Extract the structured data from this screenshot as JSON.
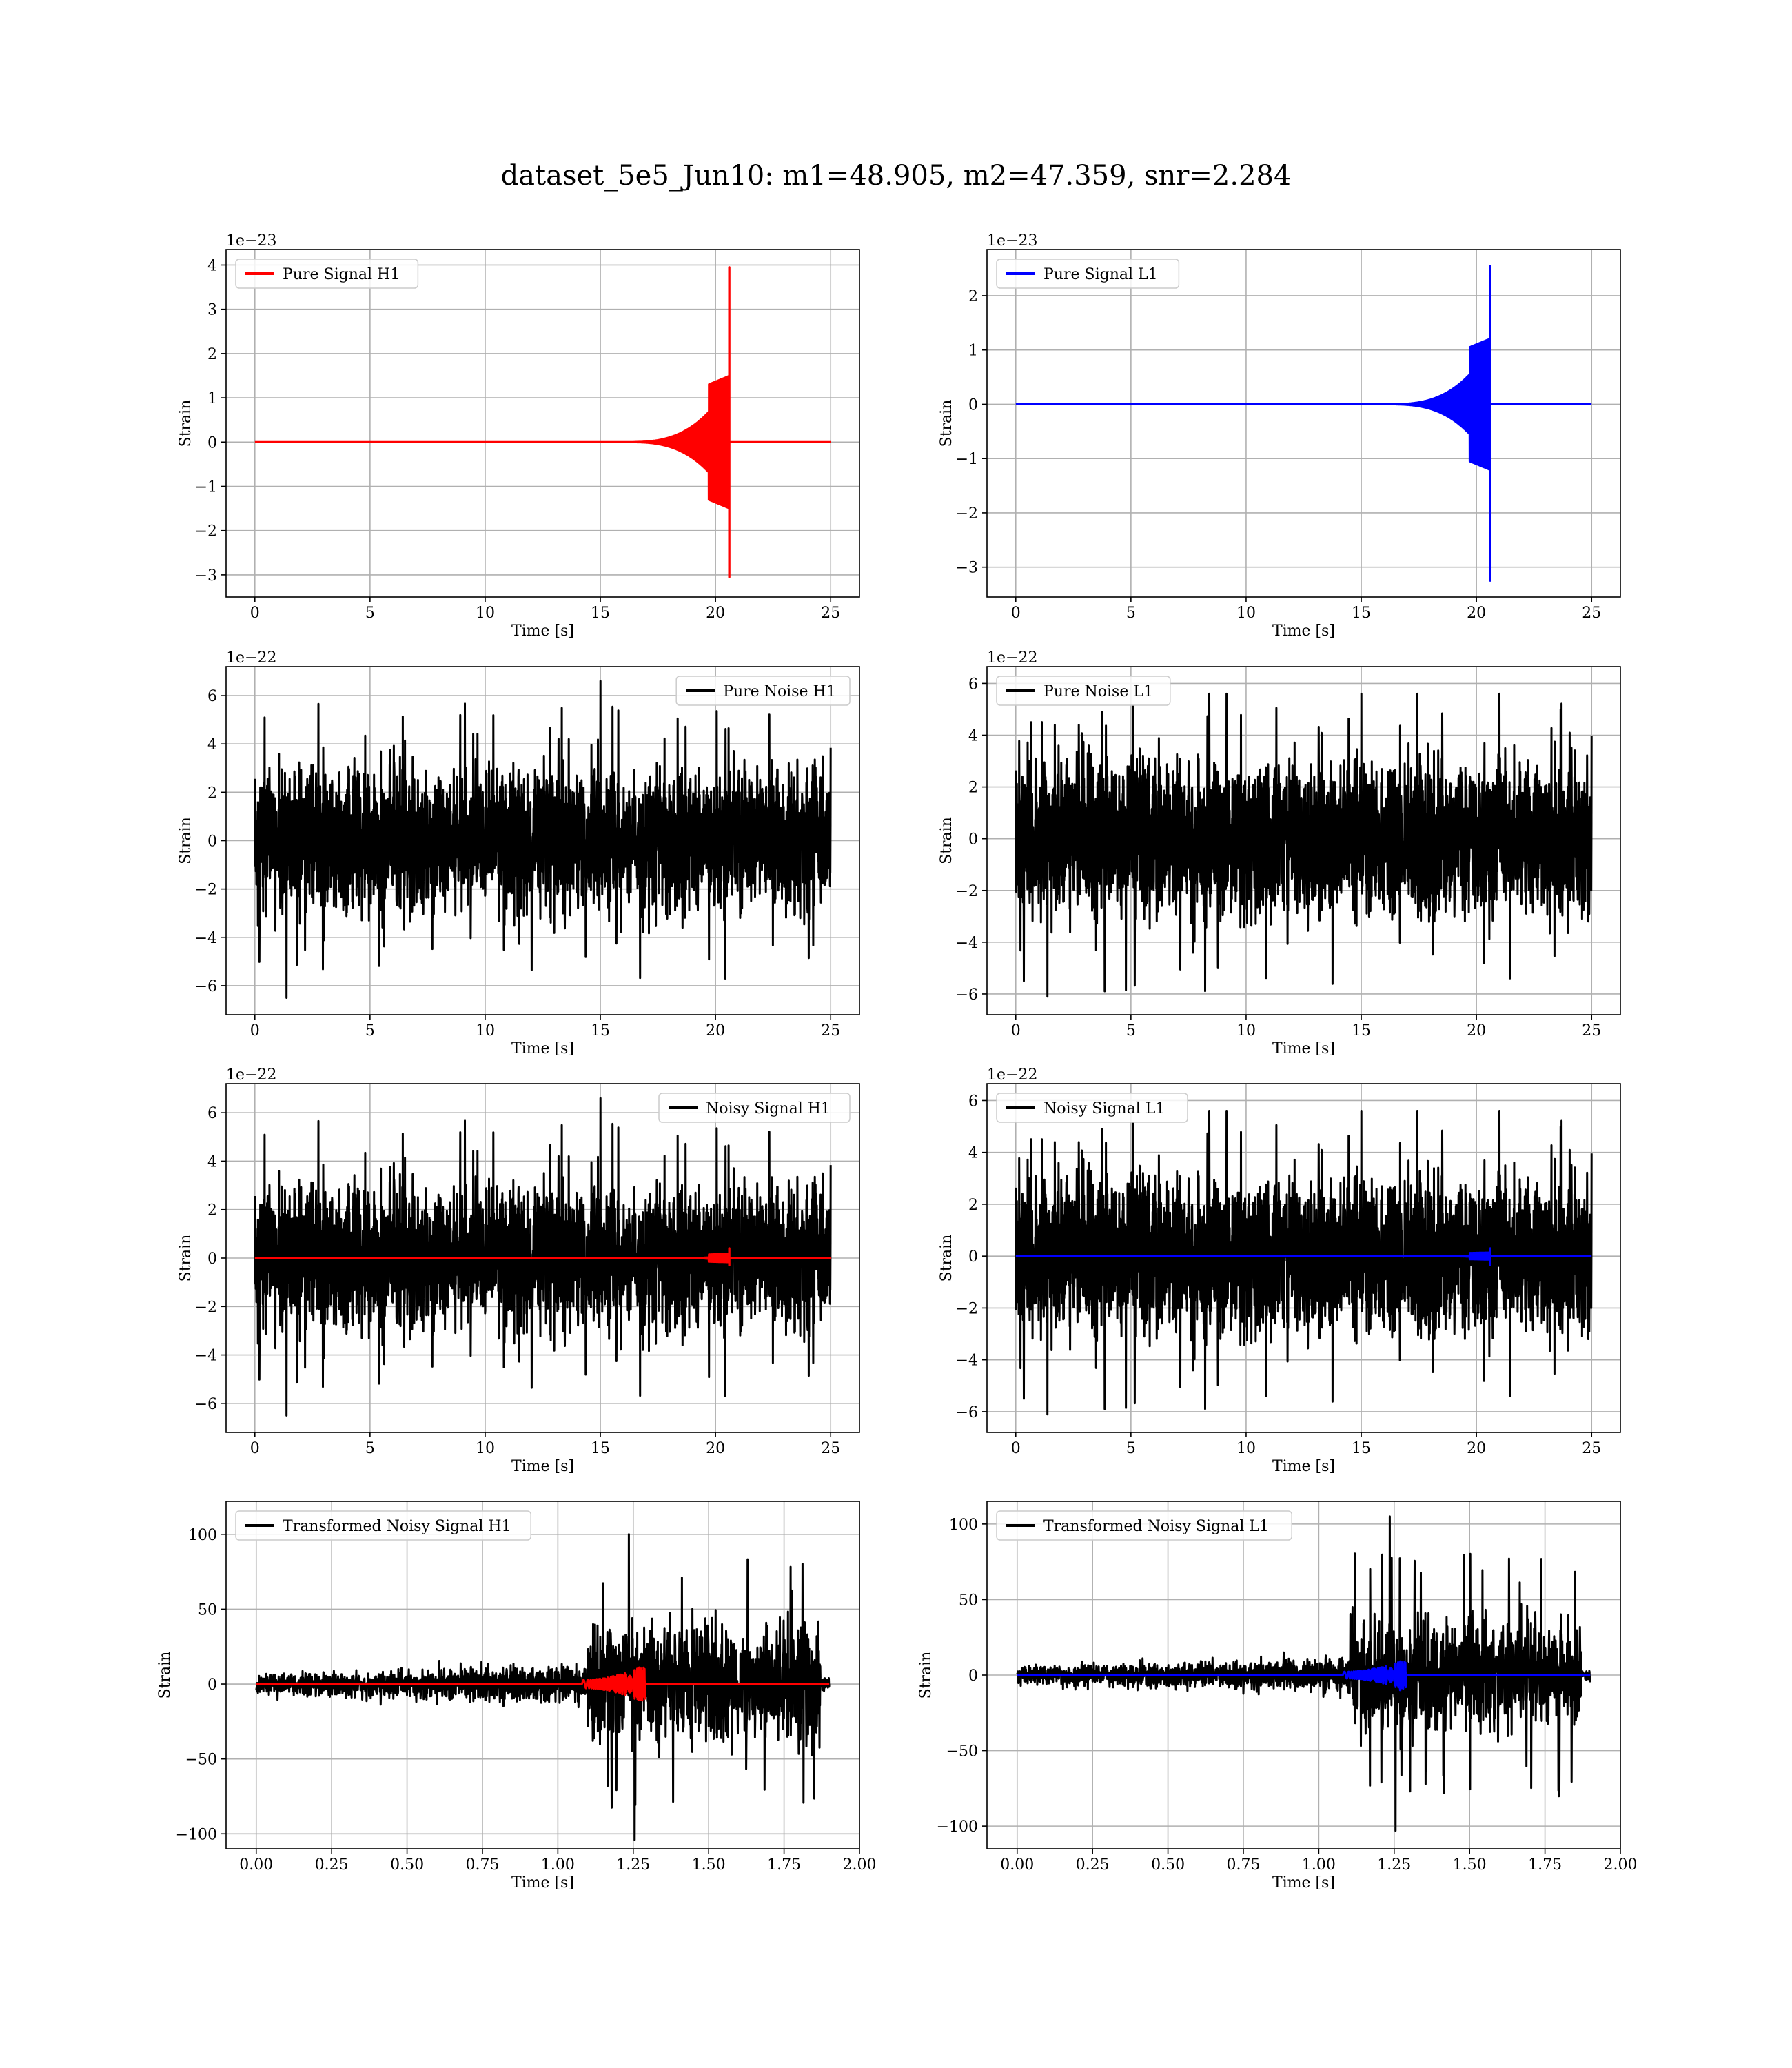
{
  "figure": {
    "title": "dataset_5e5_Jun10: m1=48.905, m2=47.359, snr=2.284"
  },
  "colors": {
    "h1_signal": "#ff0000",
    "l1_signal": "#0000ff",
    "noise": "#000000",
    "grid": "#b0b0b0"
  },
  "chart_data": [
    {
      "type": "line",
      "title": "",
      "xlabel": "Time [s]",
      "ylabel": "Strain",
      "offset_text": "1e−23",
      "xlim": [
        -1.25,
        26.25
      ],
      "ylim": [
        -3.5,
        4.35
      ],
      "xticks": [
        0,
        5,
        10,
        15,
        20,
        25
      ],
      "xtick_labels": [
        "0",
        "5",
        "10",
        "15",
        "20",
        "25"
      ],
      "yticks": [
        -3,
        -2,
        -1,
        0,
        1,
        2,
        3,
        4
      ],
      "ytick_labels": [
        "−3",
        "−2",
        "−1",
        "0",
        "1",
        "2",
        "3",
        "4"
      ],
      "legend": {
        "position": "top-left",
        "entries": [
          "Pure Signal H1"
        ]
      },
      "grid": true,
      "series": [
        {
          "name": "Pure Signal H1",
          "color": "#ff0000",
          "kind": "chirp",
          "x_start": 0,
          "x_end": 25,
          "merger_x": 20.6,
          "envelope_max": 3.95,
          "envelope_min": -3.05,
          "plateau": 1.3,
          "onset": 16
        }
      ]
    },
    {
      "type": "line",
      "title": "",
      "xlabel": "Time [s]",
      "ylabel": "Strain",
      "offset_text": "1e−23",
      "xlim": [
        -1.25,
        26.25
      ],
      "ylim": [
        -3.55,
        2.85
      ],
      "xticks": [
        0,
        5,
        10,
        15,
        20,
        25
      ],
      "xtick_labels": [
        "0",
        "5",
        "10",
        "15",
        "20",
        "25"
      ],
      "yticks": [
        -3,
        -2,
        -1,
        0,
        1,
        2
      ],
      "ytick_labels": [
        "−3",
        "−2",
        "−1",
        "0",
        "1",
        "2"
      ],
      "legend": {
        "position": "top-left",
        "entries": [
          "Pure Signal L1"
        ]
      },
      "grid": true,
      "series": [
        {
          "name": "Pure Signal L1",
          "color": "#0000ff",
          "kind": "chirp",
          "x_start": 0,
          "x_end": 25,
          "merger_x": 20.6,
          "envelope_max": 2.55,
          "envelope_min": -3.25,
          "plateau": 1.05,
          "onset": 16
        }
      ]
    },
    {
      "type": "line",
      "title": "",
      "xlabel": "Time [s]",
      "ylabel": "Strain",
      "offset_text": "1e−22",
      "xlim": [
        -1.25,
        26.25
      ],
      "ylim": [
        -7.2,
        7.2
      ],
      "xticks": [
        0,
        5,
        10,
        15,
        20,
        25
      ],
      "xtick_labels": [
        "0",
        "5",
        "10",
        "15",
        "20",
        "25"
      ],
      "yticks": [
        -6,
        -4,
        -2,
        0,
        2,
        4,
        6
      ],
      "ytick_labels": [
        "−6",
        "−4",
        "−2",
        "0",
        "2",
        "4",
        "6"
      ],
      "legend": {
        "position": "top-right",
        "entries": [
          "Pure Noise H1"
        ]
      },
      "grid": true,
      "series": [
        {
          "name": "Pure Noise H1",
          "color": "#000000",
          "kind": "noise",
          "x_start": 0,
          "x_end": 25,
          "band": 3.2,
          "peak_max": 6.6,
          "peak_min": -6.5,
          "seed": 11
        }
      ]
    },
    {
      "type": "line",
      "title": "",
      "xlabel": "Time [s]",
      "ylabel": "Strain",
      "offset_text": "1e−22",
      "xlim": [
        -1.25,
        26.25
      ],
      "ylim": [
        -6.8,
        6.65
      ],
      "xticks": [
        0,
        5,
        10,
        15,
        20,
        25
      ],
      "xtick_labels": [
        "0",
        "5",
        "10",
        "15",
        "20",
        "25"
      ],
      "yticks": [
        -6,
        -4,
        -2,
        0,
        2,
        4,
        6
      ],
      "ytick_labels": [
        "−6",
        "−4",
        "−2",
        "0",
        "2",
        "4",
        "6"
      ],
      "legend": {
        "position": "top-left",
        "entries": [
          "Pure Noise L1"
        ]
      },
      "grid": true,
      "series": [
        {
          "name": "Pure Noise L1",
          "color": "#000000",
          "kind": "noise",
          "x_start": 0,
          "x_end": 25,
          "band": 3.3,
          "peak_max": 5.6,
          "peak_min": -6.1,
          "seed": 29
        }
      ]
    },
    {
      "type": "line",
      "title": "",
      "xlabel": "Time [s]",
      "ylabel": "Strain",
      "offset_text": "1e−22",
      "xlim": [
        -1.25,
        26.25
      ],
      "ylim": [
        -7.2,
        7.2
      ],
      "xticks": [
        0,
        5,
        10,
        15,
        20,
        25
      ],
      "xtick_labels": [
        "0",
        "5",
        "10",
        "15",
        "20",
        "25"
      ],
      "yticks": [
        -6,
        -4,
        -2,
        0,
        2,
        4,
        6
      ],
      "ytick_labels": [
        "−6",
        "−4",
        "−2",
        "0",
        "2",
        "4",
        "6"
      ],
      "legend": {
        "position": "top-right",
        "entries": [
          "Noisy Signal H1"
        ]
      },
      "grid": true,
      "series": [
        {
          "name": "Noisy Signal H1",
          "color": "#000000",
          "kind": "noise",
          "x_start": 0,
          "x_end": 25,
          "band": 3.2,
          "peak_max": 6.6,
          "peak_min": -6.5,
          "seed": 11
        },
        {
          "color": "#ff0000",
          "kind": "chirp",
          "x_start": 0,
          "x_end": 25,
          "merger_x": 20.6,
          "envelope_max": 0.4,
          "envelope_min": -0.3,
          "plateau": 0.15,
          "onset": 18.5
        }
      ]
    },
    {
      "type": "line",
      "title": "",
      "xlabel": "Time [s]",
      "ylabel": "Strain",
      "offset_text": "1e−22",
      "xlim": [
        -1.25,
        26.25
      ],
      "ylim": [
        -6.8,
        6.65
      ],
      "xticks": [
        0,
        5,
        10,
        15,
        20,
        25
      ],
      "xtick_labels": [
        "0",
        "5",
        "10",
        "15",
        "20",
        "25"
      ],
      "yticks": [
        -6,
        -4,
        -2,
        0,
        2,
        4,
        6
      ],
      "ytick_labels": [
        "−6",
        "−4",
        "−2",
        "0",
        "2",
        "4",
        "6"
      ],
      "legend": {
        "position": "top-left",
        "entries": [
          "Noisy Signal L1"
        ]
      },
      "grid": true,
      "series": [
        {
          "name": "Noisy Signal L1",
          "color": "#000000",
          "kind": "noise",
          "x_start": 0,
          "x_end": 25,
          "band": 3.3,
          "peak_max": 5.6,
          "peak_min": -6.1,
          "seed": 29
        },
        {
          "color": "#0000ff",
          "kind": "chirp",
          "x_start": 0,
          "x_end": 25,
          "merger_x": 20.6,
          "envelope_max": 0.3,
          "envelope_min": -0.35,
          "plateau": 0.12,
          "onset": 18.5
        }
      ]
    },
    {
      "type": "line",
      "title": "",
      "xlabel": "Time [s]",
      "ylabel": "Strain",
      "offset_text": "",
      "xlim": [
        -0.1,
        2.0
      ],
      "ylim": [
        -110,
        122
      ],
      "xticks": [
        0.0,
        0.25,
        0.5,
        0.75,
        1.0,
        1.25,
        1.5,
        1.75,
        2.0
      ],
      "xtick_labels": [
        "0.00",
        "0.25",
        "0.50",
        "0.75",
        "1.00",
        "1.25",
        "1.50",
        "1.75",
        "2.00"
      ],
      "yticks": [
        -100,
        -50,
        0,
        50,
        100
      ],
      "ytick_labels": [
        "−100",
        "−50",
        "0",
        "50",
        "100"
      ],
      "legend": {
        "position": "top-left",
        "entries": [
          "Transformed Noisy Signal H1"
        ]
      },
      "grid": true,
      "series": [
        {
          "name": "Transformed Noisy Signal H1",
          "color": "#000000",
          "kind": "tnoise",
          "x_start": 0,
          "x_end": 1.9,
          "break_x": 1.1,
          "lead_end": 1.87,
          "early_band": 8,
          "late_band": 48,
          "peak_max": 100,
          "peak_min": -104,
          "seed": 53
        },
        {
          "color": "#ff0000",
          "kind": "tchirp",
          "x_start": 0,
          "x_end": 1.9,
          "merger_x": 1.27,
          "envelope_max": 11,
          "envelope_min": -9,
          "onset": 1.08
        }
      ]
    },
    {
      "type": "line",
      "title": "",
      "xlabel": "Time [s]",
      "ylabel": "Strain",
      "offset_text": "",
      "xlim": [
        -0.1,
        2.0
      ],
      "ylim": [
        -115,
        115
      ],
      "xticks": [
        0.0,
        0.25,
        0.5,
        0.75,
        1.0,
        1.25,
        1.5,
        1.75,
        2.0
      ],
      "xtick_labels": [
        "0.00",
        "0.25",
        "0.50",
        "0.75",
        "1.00",
        "1.25",
        "1.50",
        "1.75",
        "2.00"
      ],
      "yticks": [
        -100,
        -50,
        0,
        50,
        100
      ],
      "ytick_labels": [
        "−100",
        "−50",
        "0",
        "50",
        "100"
      ],
      "legend": {
        "position": "top-left",
        "entries": [
          "Transformed Noisy Signal L1"
        ]
      },
      "grid": true,
      "series": [
        {
          "name": "Transformed Noisy Signal L1",
          "color": "#000000",
          "kind": "tnoise",
          "x_start": 0,
          "x_end": 1.9,
          "break_x": 1.1,
          "lead_end": 1.87,
          "early_band": 7,
          "late_band": 45,
          "peak_max": 105,
          "peak_min": -103,
          "seed": 71
        },
        {
          "color": "#0000ff",
          "kind": "tchirp",
          "x_start": 0,
          "x_end": 1.9,
          "merger_x": 1.27,
          "envelope_max": 9,
          "envelope_min": -10,
          "onset": 1.08
        }
      ]
    }
  ]
}
